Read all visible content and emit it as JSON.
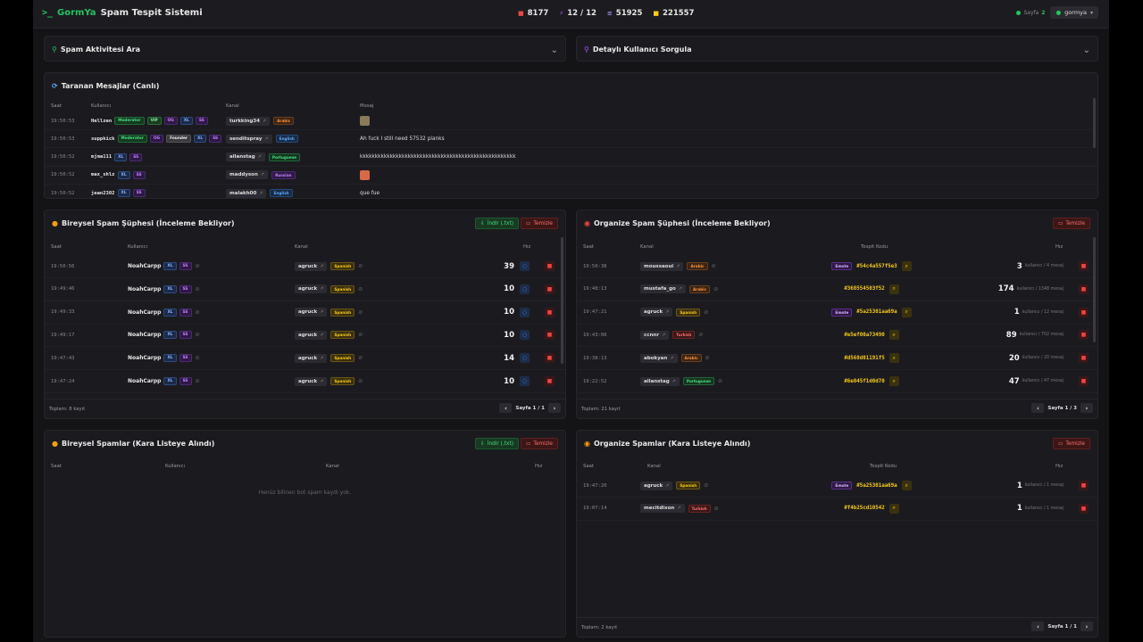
{
  "app": {
    "logo": ">_",
    "brand_accent": "GormYa",
    "brand_rest": "Spam Tespit Sistemi",
    "stats": [
      {
        "icon": "video-icon",
        "value": "8177",
        "color": "#ef4444"
      },
      {
        "icon": "bolt-icon",
        "value": "12 / 12",
        "color": "#a855f7"
      },
      {
        "icon": "signal-icon",
        "value": "51925",
        "color": "#a78bfa"
      },
      {
        "icon": "database-icon",
        "value": "221557",
        "color": "#facc15"
      }
    ],
    "online_label": "Sayfa",
    "online_count": "2",
    "user": "gormya"
  },
  "search_panels": {
    "spam_activity": "Spam Aktivitesi Ara",
    "user_lookup": "Detaylı Kullanıcı Sorgula"
  },
  "live": {
    "title": "Taranan Mesajlar (Canlı)",
    "headers": [
      "Saat",
      "Kullanıcı",
      "Kanal",
      "Mesaj"
    ],
    "rows": [
      {
        "time": "19:50:53",
        "user": "Hellzen",
        "tags": [
          {
            "t": "Moderator",
            "c": "t-mod"
          },
          {
            "t": "VIP",
            "c": "t-vip"
          },
          {
            "t": "OG",
            "c": "t-og"
          },
          {
            "t": "XL",
            "c": "t-xl"
          },
          {
            "t": "SS",
            "c": "t-ss"
          }
        ],
        "channel": "turkking34",
        "lang": "Arabic",
        "lang_class": "l-ar",
        "msg": "",
        "emoji": "#8a7a5a"
      },
      {
        "time": "19:50:53",
        "user": "suppkick",
        "tags": [
          {
            "t": "Moderator",
            "c": "t-mod"
          },
          {
            "t": "OG",
            "c": "t-og"
          },
          {
            "t": "Founder",
            "c": "t-founder"
          },
          {
            "t": "XL",
            "c": "t-xl"
          },
          {
            "t": "SS",
            "c": "t-ss"
          }
        ],
        "channel": "senditspray",
        "lang": "English",
        "lang_class": "l-en",
        "msg": "Ah fuck I still need 57532 planks",
        "emoji": ""
      },
      {
        "time": "19:50:52",
        "user": "mjma111",
        "tags": [
          {
            "t": "XL",
            "c": "t-xl"
          },
          {
            "t": "SS",
            "c": "t-ss"
          }
        ],
        "channel": "allanstag",
        "lang": "Portuguese",
        "lang_class": "l-pt",
        "msg": "kkkkkkkkkkkkkkkkkkkkkkkkkkkkkkkkkkkkkkkkkkkkkkkkkkkk",
        "emoji": ""
      },
      {
        "time": "19:50:52",
        "user": "max_shlz",
        "tags": [
          {
            "t": "XL",
            "c": "t-xl"
          },
          {
            "t": "SS",
            "c": "t-ss"
          }
        ],
        "channel": "maddyson",
        "lang": "Russian",
        "lang_class": "l-ru",
        "msg": "",
        "emoji": "#d46a4a"
      },
      {
        "time": "19:50:52",
        "user": "jean2302",
        "tags": [
          {
            "t": "XL",
            "c": "t-xl"
          },
          {
            "t": "SS",
            "c": "t-ss"
          }
        ],
        "channel": "malakh00",
        "lang": "English",
        "lang_class": "l-en",
        "msg": "que fue",
        "emoji": ""
      }
    ]
  },
  "ind_suspects": {
    "title": "Bireysel Spam Şüphesi (İnceleme Bekliyor)",
    "download": "İndir (.txt)",
    "clear": "Temizle",
    "headers": [
      "Saat",
      "Kullanıcı",
      "Kanal",
      "Hız"
    ],
    "rows": [
      {
        "time": "19:50:56",
        "user": "NoahCarpp",
        "channel": "agruck",
        "lang": "Spanish",
        "speed": "39"
      },
      {
        "time": "19:49:46",
        "user": "NoahCarpp",
        "channel": "agruck",
        "lang": "Spanish",
        "speed": "10"
      },
      {
        "time": "19:49:33",
        "user": "NoahCarpp",
        "channel": "agruck",
        "lang": "Spanish",
        "speed": "10"
      },
      {
        "time": "19:49:17",
        "user": "NoahCarpp",
        "channel": "agruck",
        "lang": "Spanish",
        "speed": "10"
      },
      {
        "time": "19:47:43",
        "user": "NoahCarpp",
        "channel": "agruck",
        "lang": "Spanish",
        "speed": "14"
      },
      {
        "time": "19:47:24",
        "user": "NoahCarpp",
        "channel": "agruck",
        "lang": "Spanish",
        "speed": "10"
      }
    ],
    "footer": "Toplam: 8 kayıt",
    "page": "Sayfa 1 / 1"
  },
  "org_suspects": {
    "title": "Organize Spam Şüphesi (İnceleme Bekliyor)",
    "clear": "Temizle",
    "headers": [
      "Saat",
      "Kanal",
      "Tespit Kodu",
      "Hız"
    ],
    "rows": [
      {
        "time": "19:50:38",
        "channel": "moussaoui",
        "lang": "Arabic",
        "lang_class": "l-ar",
        "emote": true,
        "code": "#54c4a557f5e3",
        "count": "3",
        "detail": "kullanıcı / 4 mesaj"
      },
      {
        "time": "19:48:13",
        "channel": "mustafa_go",
        "lang": "Arabic",
        "lang_class": "l-ar",
        "emote": false,
        "code": "#368554503f52",
        "count": "174",
        "detail": "kullanıcı / 1348 mesaj"
      },
      {
        "time": "19:47:21",
        "channel": "agruck",
        "lang": "Spanish",
        "lang_class": "l-es",
        "emote": true,
        "code": "#5a25301aa69a",
        "count": "1",
        "detail": "kullanıcı / 12 mesaj"
      },
      {
        "time": "19:43:08",
        "channel": "ccnnr",
        "lang": "Turkish",
        "lang_class": "l-tr",
        "emote": false,
        "code": "#e5ef00a73490",
        "count": "89",
        "detail": "kullanıcı / 702 mesaj"
      },
      {
        "time": "19:38:13",
        "channel": "abokyan",
        "lang": "Arabic",
        "lang_class": "l-ar",
        "emote": false,
        "code": "#d568d01191f5",
        "count": "20",
        "detail": "kullanıcı / 20 mesaj"
      },
      {
        "time": "19:22:52",
        "channel": "allanstag",
        "lang": "Portuguese",
        "lang_class": "l-pt",
        "emote": false,
        "code": "#6e045f1d0d70",
        "count": "47",
        "detail": "kullanıcı / 47 mesaj"
      }
    ],
    "emote_label": "Emote",
    "footer": "Toplam: 21 kayıt",
    "page": "Sayfa 1 / 3"
  },
  "ind_spams": {
    "title": "Bireysel Spamlar (Kara Listeye Alındı)",
    "download": "İndir (.txt)",
    "clear": "Temizle",
    "headers": [
      "Saat",
      "Kullanıcı",
      "Kanal",
      "Hız"
    ],
    "empty": "Henüz bilinen bot spam kaydı yok."
  },
  "org_spams": {
    "title": "Organize Spamlar (Kara Listeye Alındı)",
    "clear": "Temizle",
    "headers": [
      "Saat",
      "Kanal",
      "Tespit Kodu",
      "Hız"
    ],
    "rows": [
      {
        "time": "19:47:20",
        "channel": "agruck",
        "lang": "Spanish",
        "lang_class": "l-es",
        "emote": true,
        "code": "#5a25301aa69a",
        "count": "1",
        "detail": "kullanıcı / 1 mesaj"
      },
      {
        "time": "19:07:14",
        "channel": "mecitdixon",
        "lang": "Turkish",
        "lang_class": "l-tr",
        "emote": false,
        "code": "#f4b25cd10542",
        "count": "1",
        "detail": "kullanıcı / 1 mesaj"
      }
    ],
    "emote_label": "Emote",
    "footer": "Toplam: 2 kayıt",
    "page": "Sayfa 1 / 1"
  }
}
